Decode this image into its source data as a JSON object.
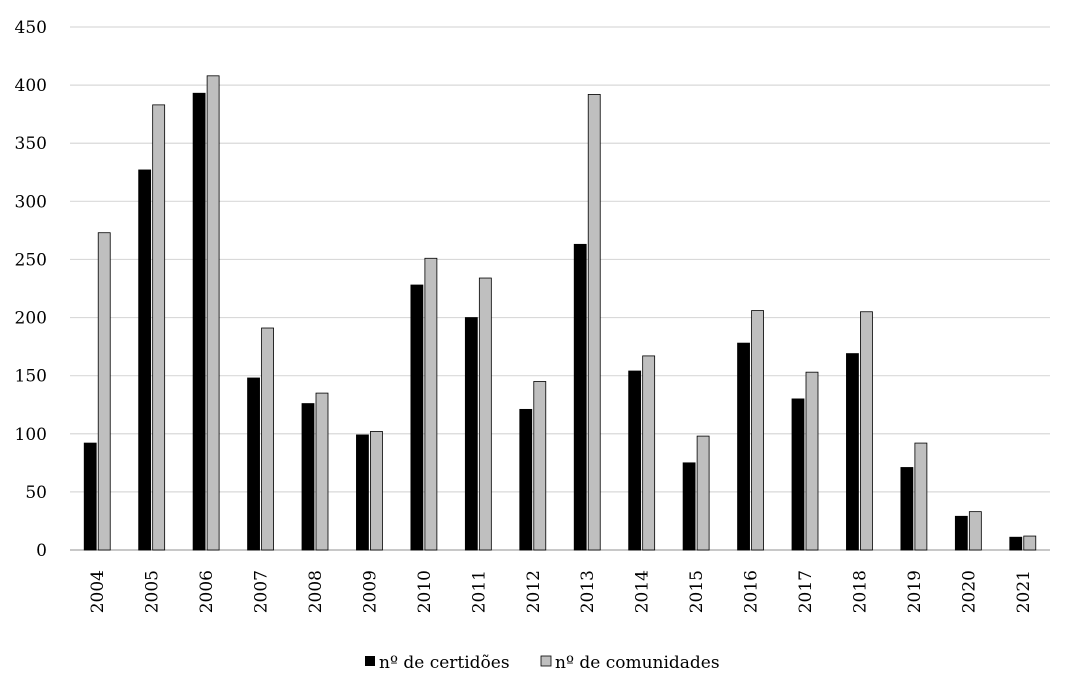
{
  "chart_data": {
    "type": "bar",
    "categories": [
      "2004",
      "2005",
      "2006",
      "2007",
      "2008",
      "2009",
      "2010",
      "2011",
      "2012",
      "2013",
      "2014",
      "2015",
      "2016",
      "2017",
      "2018",
      "2019",
      "2020",
      "2021"
    ],
    "series": [
      {
        "name": "nº de certidões",
        "color": "#000000",
        "values": [
          92,
          327,
          393,
          148,
          126,
          99,
          228,
          200,
          121,
          263,
          154,
          75,
          178,
          130,
          169,
          71,
          29,
          11
        ]
      },
      {
        "name": "nº de comunidades",
        "color": "#bfbfbf",
        "values": [
          273,
          383,
          408,
          191,
          135,
          102,
          251,
          234,
          145,
          392,
          167,
          98,
          206,
          153,
          205,
          92,
          33,
          12
        ]
      }
    ],
    "ylim": [
      0,
      450
    ],
    "yticks": [
      0,
      50,
      100,
      150,
      200,
      250,
      300,
      350,
      400,
      450
    ],
    "grid": true,
    "legend_position": "bottom"
  }
}
